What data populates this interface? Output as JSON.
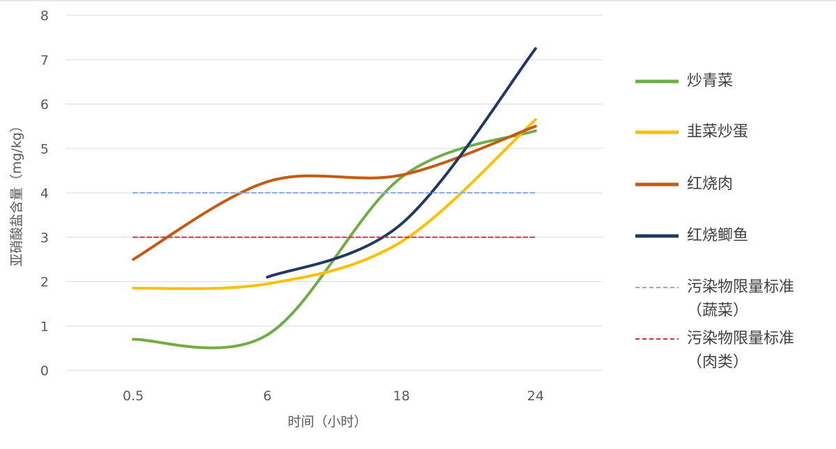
{
  "chart_data": {
    "type": "line",
    "x_label": "时间（小时）",
    "y_label": "亚硝酸盐含量（mg/kg）",
    "categories": [
      "0.5",
      "6",
      "18",
      "24"
    ],
    "ylim": [
      0,
      8
    ],
    "yticks": [
      0,
      1,
      2,
      3,
      4,
      5,
      6,
      7,
      8
    ],
    "grid": true,
    "legend": "right",
    "series": [
      {
        "name": "炒青菜",
        "color": "#70ad47",
        "style": "solid",
        "smooth": true,
        "values": [
          0.7,
          0.8,
          4.35,
          5.4
        ]
      },
      {
        "name": "韭菜炒蛋",
        "color": "#ffc000",
        "style": "solid",
        "smooth": true,
        "values": [
          1.85,
          1.95,
          2.9,
          5.65
        ]
      },
      {
        "name": "红烧肉",
        "color": "#c55a11",
        "style": "solid",
        "smooth": true,
        "values": [
          2.5,
          4.25,
          4.4,
          5.5
        ]
      },
      {
        "name": "红烧鲫鱼",
        "color": "#203864",
        "style": "solid",
        "smooth": true,
        "values": [
          null,
          2.1,
          3.3,
          7.25
        ]
      },
      {
        "name": "污染物限量标准（蔬菜）",
        "color": "#8faadc",
        "style": "dashed",
        "smooth": false,
        "values": [
          4,
          4,
          4,
          4
        ]
      },
      {
        "name": "污染物限量标准（肉类）",
        "color": "#e03030",
        "style": "dashed",
        "smooth": false,
        "values": [
          3,
          3,
          3,
          3
        ]
      }
    ]
  }
}
